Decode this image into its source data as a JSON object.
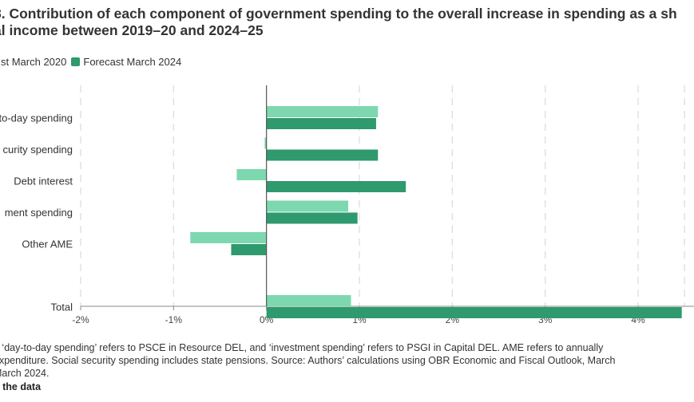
{
  "title": "8. Contribution of each component of government spending to the overall increase in spending as a sh\nal income between 2019–20 and 2024–25",
  "legend": {
    "series1": "st March 2020",
    "series2": "Forecast March 2024"
  },
  "colors": {
    "series1": "#7dd8b0",
    "series2": "#2e9a6d",
    "grid": "#dddddd",
    "axis": "#777777"
  },
  "notes": "e ‘day-to-day spending’ refers to PSCE in Resource DEL, and ‘investment spending’ refers to PSGI in Capital DEL. AME refers to annually\n expenditure. Social security spending includes state pensions. Source: Authors’ calculations using OBR Economic and Fiscal Outlook, March\n March 2024.",
  "data_link": "d the data",
  "chart_data": {
    "type": "bar",
    "orientation": "horizontal",
    "categories": [
      "to-day spending",
      "curity spending",
      "Debt interest",
      "ment spending",
      "Other AME",
      "",
      "Total"
    ],
    "series": [
      {
        "name": "st March 2020",
        "values": [
          1.2,
          -0.02,
          -0.32,
          0.88,
          -0.82,
          null,
          0.91
        ]
      },
      {
        "name": "Forecast March 2024",
        "values": [
          1.18,
          1.2,
          1.5,
          0.98,
          -0.38,
          null,
          4.47
        ]
      }
    ],
    "x_ticks": [
      "-2%",
      "-1%",
      "0%",
      "1%",
      "2%",
      "3%",
      "4%"
    ],
    "xlim": [
      -2,
      4.5
    ],
    "grid": true,
    "legend_position": "top-left"
  }
}
